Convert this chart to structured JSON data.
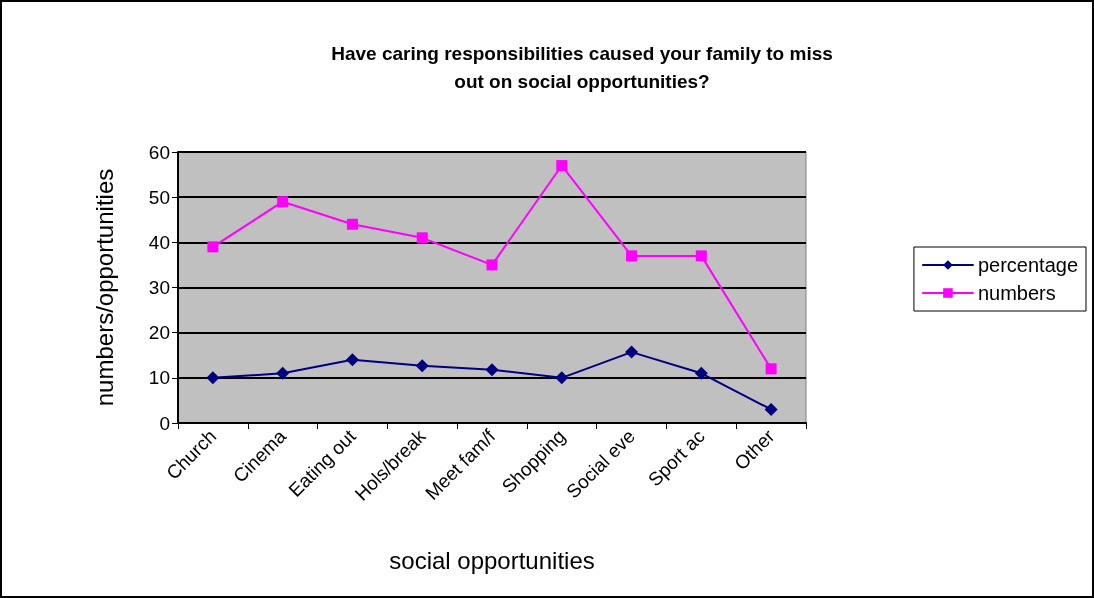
{
  "chart_data": {
    "type": "line",
    "title": "Have caring responsibilities caused your family to miss\nout on social opportunities?",
    "xlabel": "social opportunities",
    "ylabel": "numbers/opportunities",
    "categories": [
      "Church",
      "Cinema",
      "Eating out",
      "Hols/break",
      "Meet fam/f",
      "Shopping",
      "Social eve",
      "Sport ac",
      "Other"
    ],
    "series": [
      {
        "name": "percentage",
        "color": "#000080",
        "marker": "diamond",
        "values": [
          10,
          11,
          14,
          12.7,
          11.8,
          10,
          15.7,
          11,
          3
        ]
      },
      {
        "name": "numbers",
        "color": "#ff00ff",
        "marker": "square",
        "values": [
          39,
          49,
          44,
          41,
          35,
          57,
          37,
          37,
          12
        ]
      }
    ],
    "ylim": [
      0,
      60
    ],
    "yticks": [
      0,
      10,
      20,
      30,
      40,
      50,
      60
    ],
    "grid": "y",
    "legend": "right",
    "line_style": "solid"
  }
}
